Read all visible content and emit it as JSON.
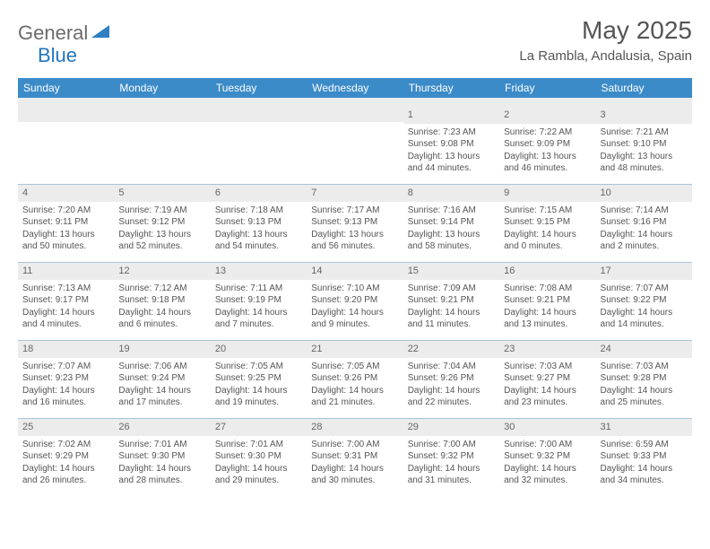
{
  "brand": {
    "name1": "General",
    "name2": "Blue"
  },
  "title": "May 2025",
  "location": "La Rambla, Andalusia, Spain",
  "colors": {
    "header_bg": "#3b8bc8",
    "grid_line": "#a8c4db",
    "shade": "#ececec",
    "text": "#555555"
  },
  "day_names": [
    "Sunday",
    "Monday",
    "Tuesday",
    "Wednesday",
    "Thursday",
    "Friday",
    "Saturday"
  ],
  "weeks": [
    [
      null,
      null,
      null,
      null,
      {
        "n": 1,
        "sr": "7:23 AM",
        "ss": "9:08 PM",
        "dl": "13 hours and 44 minutes."
      },
      {
        "n": 2,
        "sr": "7:22 AM",
        "ss": "9:09 PM",
        "dl": "13 hours and 46 minutes."
      },
      {
        "n": 3,
        "sr": "7:21 AM",
        "ss": "9:10 PM",
        "dl": "13 hours and 48 minutes."
      }
    ],
    [
      {
        "n": 4,
        "sr": "7:20 AM",
        "ss": "9:11 PM",
        "dl": "13 hours and 50 minutes."
      },
      {
        "n": 5,
        "sr": "7:19 AM",
        "ss": "9:12 PM",
        "dl": "13 hours and 52 minutes."
      },
      {
        "n": 6,
        "sr": "7:18 AM",
        "ss": "9:13 PM",
        "dl": "13 hours and 54 minutes."
      },
      {
        "n": 7,
        "sr": "7:17 AM",
        "ss": "9:13 PM",
        "dl": "13 hours and 56 minutes."
      },
      {
        "n": 8,
        "sr": "7:16 AM",
        "ss": "9:14 PM",
        "dl": "13 hours and 58 minutes."
      },
      {
        "n": 9,
        "sr": "7:15 AM",
        "ss": "9:15 PM",
        "dl": "14 hours and 0 minutes."
      },
      {
        "n": 10,
        "sr": "7:14 AM",
        "ss": "9:16 PM",
        "dl": "14 hours and 2 minutes."
      }
    ],
    [
      {
        "n": 11,
        "sr": "7:13 AM",
        "ss": "9:17 PM",
        "dl": "14 hours and 4 minutes."
      },
      {
        "n": 12,
        "sr": "7:12 AM",
        "ss": "9:18 PM",
        "dl": "14 hours and 6 minutes."
      },
      {
        "n": 13,
        "sr": "7:11 AM",
        "ss": "9:19 PM",
        "dl": "14 hours and 7 minutes."
      },
      {
        "n": 14,
        "sr": "7:10 AM",
        "ss": "9:20 PM",
        "dl": "14 hours and 9 minutes."
      },
      {
        "n": 15,
        "sr": "7:09 AM",
        "ss": "9:21 PM",
        "dl": "14 hours and 11 minutes."
      },
      {
        "n": 16,
        "sr": "7:08 AM",
        "ss": "9:21 PM",
        "dl": "14 hours and 13 minutes."
      },
      {
        "n": 17,
        "sr": "7:07 AM",
        "ss": "9:22 PM",
        "dl": "14 hours and 14 minutes."
      }
    ],
    [
      {
        "n": 18,
        "sr": "7:07 AM",
        "ss": "9:23 PM",
        "dl": "14 hours and 16 minutes."
      },
      {
        "n": 19,
        "sr": "7:06 AM",
        "ss": "9:24 PM",
        "dl": "14 hours and 17 minutes."
      },
      {
        "n": 20,
        "sr": "7:05 AM",
        "ss": "9:25 PM",
        "dl": "14 hours and 19 minutes."
      },
      {
        "n": 21,
        "sr": "7:05 AM",
        "ss": "9:26 PM",
        "dl": "14 hours and 21 minutes."
      },
      {
        "n": 22,
        "sr": "7:04 AM",
        "ss": "9:26 PM",
        "dl": "14 hours and 22 minutes."
      },
      {
        "n": 23,
        "sr": "7:03 AM",
        "ss": "9:27 PM",
        "dl": "14 hours and 23 minutes."
      },
      {
        "n": 24,
        "sr": "7:03 AM",
        "ss": "9:28 PM",
        "dl": "14 hours and 25 minutes."
      }
    ],
    [
      {
        "n": 25,
        "sr": "7:02 AM",
        "ss": "9:29 PM",
        "dl": "14 hours and 26 minutes."
      },
      {
        "n": 26,
        "sr": "7:01 AM",
        "ss": "9:30 PM",
        "dl": "14 hours and 28 minutes."
      },
      {
        "n": 27,
        "sr": "7:01 AM",
        "ss": "9:30 PM",
        "dl": "14 hours and 29 minutes."
      },
      {
        "n": 28,
        "sr": "7:00 AM",
        "ss": "9:31 PM",
        "dl": "14 hours and 30 minutes."
      },
      {
        "n": 29,
        "sr": "7:00 AM",
        "ss": "9:32 PM",
        "dl": "14 hours and 31 minutes."
      },
      {
        "n": 30,
        "sr": "7:00 AM",
        "ss": "9:32 PM",
        "dl": "14 hours and 32 minutes."
      },
      {
        "n": 31,
        "sr": "6:59 AM",
        "ss": "9:33 PM",
        "dl": "14 hours and 34 minutes."
      }
    ]
  ],
  "labels": {
    "sunrise": "Sunrise:",
    "sunset": "Sunset:",
    "daylight": "Daylight:"
  }
}
